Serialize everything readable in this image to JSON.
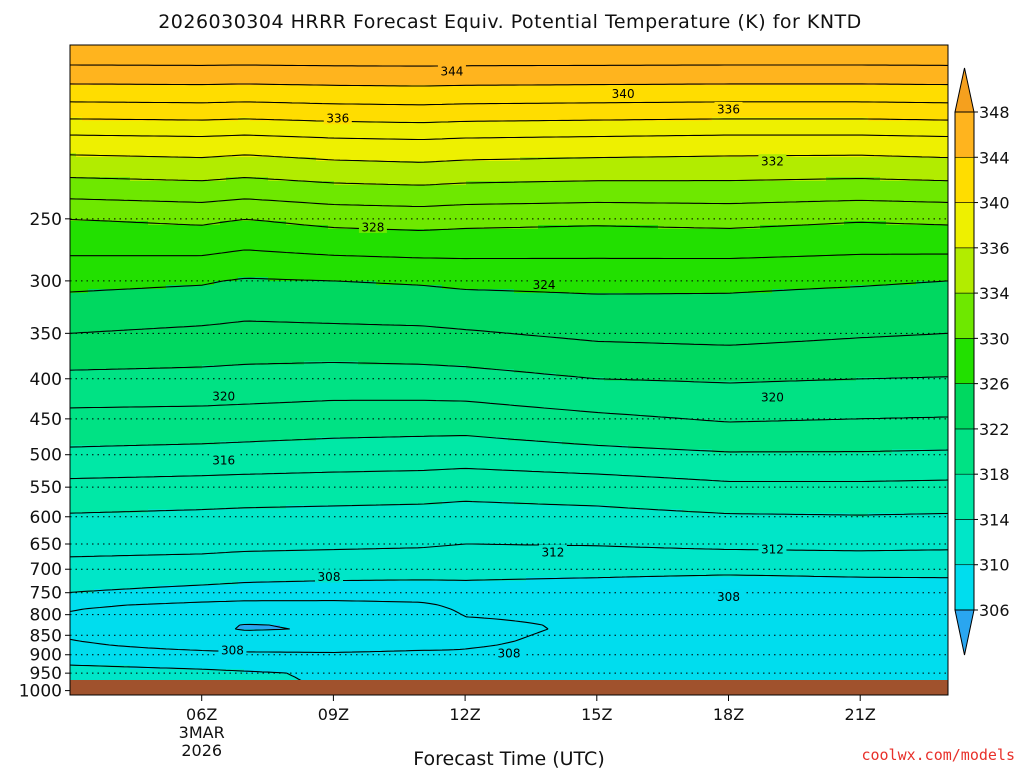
{
  "chart_data": {
    "type": "heatmap",
    "title": "2026030304 HRRR Forecast Equiv. Potential Temperature (K) for KNTD",
    "xlabel": "Forecast Time (UTC)",
    "ylabel": "",
    "credit": "coolwx.com/models",
    "x_start_hour": 3,
    "x_end_hour": 23,
    "x_ticks": [
      {
        "hour": 6,
        "label": "06Z",
        "sub1": "3MAR",
        "sub2": "2026"
      },
      {
        "hour": 9,
        "label": "09Z"
      },
      {
        "hour": 12,
        "label": "12Z"
      },
      {
        "hour": 15,
        "label": "15Z"
      },
      {
        "hour": 18,
        "label": "18Z"
      },
      {
        "hour": 21,
        "label": "21Z"
      }
    ],
    "y_axis": {
      "top_hpa": 150,
      "surface_hpa": 1013,
      "ticks": [
        {
          "p": 250,
          "label": "250"
        },
        {
          "p": 300,
          "label": "300"
        },
        {
          "p": 350,
          "label": "350"
        },
        {
          "p": 400,
          "label": "400"
        },
        {
          "p": 450,
          "label": "450"
        },
        {
          "p": 500,
          "label": "500"
        },
        {
          "p": 550,
          "label": "550"
        },
        {
          "p": 600,
          "label": "600"
        },
        {
          "p": 650,
          "label": "650"
        },
        {
          "p": 700,
          "label": "700"
        },
        {
          "p": 750,
          "label": "750"
        },
        {
          "p": 800,
          "label": "800"
        },
        {
          "p": 850,
          "label": "850"
        },
        {
          "p": 900,
          "label": "900"
        },
        {
          "p": 950,
          "label": "950"
        },
        {
          "p": 1000,
          "label": "1000"
        }
      ]
    },
    "colorbar": {
      "levels": [
        306,
        310,
        314,
        318,
        322,
        326,
        330,
        334,
        336,
        340,
        344,
        348
      ],
      "labels": [
        "306",
        "310",
        "314",
        "318",
        "322",
        "326",
        "330",
        "334",
        "336",
        "340",
        "344",
        "348"
      ],
      "colors": [
        "#18c8ff",
        "#00ddee",
        "#00e6c8",
        "#00e8a6",
        "#00e284",
        "#00d860",
        "#22e000",
        "#6ee800",
        "#b2ec00",
        "#eef000",
        "#ffdd00",
        "#ffb41e",
        "#ff9c1c"
      ],
      "under_color": "#2aa6f0",
      "over_color": "#f5a01e"
    },
    "surface_color": "#a0522d",
    "contour_interval": 2,
    "profiles": [
      {
        "hour": 3,
        "theta": [
          [
            150,
            348.0
          ],
          [
            200,
            337.0
          ],
          [
            250,
            330.0
          ],
          [
            300,
            326.5
          ],
          [
            350,
            324.0
          ],
          [
            400,
            321.5
          ],
          [
            450,
            319.4
          ],
          [
            500,
            317.6
          ],
          [
            550,
            315.4
          ],
          [
            600,
            313.8
          ],
          [
            650,
            312.6
          ],
          [
            700,
            311.4
          ],
          [
            750,
            310.0
          ],
          [
            780,
            308.2
          ],
          [
            830,
            307.4
          ],
          [
            870,
            308.2
          ],
          [
            900,
            309.0
          ],
          [
            950,
            310.8
          ],
          [
            1000,
            310.6
          ]
        ]
      },
      {
        "hour": 6,
        "theta": [
          [
            150,
            348.0
          ],
          [
            200,
            337.2
          ],
          [
            250,
            330.4
          ],
          [
            300,
            326.2
          ],
          [
            350,
            323.6
          ],
          [
            400,
            321.4
          ],
          [
            450,
            319.3
          ],
          [
            500,
            317.4
          ],
          [
            550,
            315.2
          ],
          [
            600,
            313.6
          ],
          [
            650,
            312.5
          ],
          [
            700,
            311.2
          ],
          [
            750,
            309.4
          ],
          [
            780,
            307.4
          ],
          [
            830,
            306.2
          ],
          [
            870,
            307.0
          ],
          [
            900,
            308.6
          ],
          [
            950,
            310.4
          ],
          [
            1000,
            310.3
          ]
        ]
      },
      {
        "hour": 7,
        "theta": [
          [
            150,
            348.0
          ],
          [
            200,
            337.0
          ],
          [
            250,
            330.0
          ],
          [
            300,
            325.8
          ],
          [
            350,
            323.4
          ],
          [
            400,
            321.3
          ],
          [
            450,
            319.2
          ],
          [
            500,
            317.3
          ],
          [
            550,
            315.1
          ],
          [
            600,
            313.5
          ],
          [
            650,
            312.4
          ],
          [
            700,
            311.0
          ],
          [
            750,
            309.2
          ],
          [
            780,
            307.2
          ],
          [
            830,
            305.8
          ],
          [
            870,
            306.8
          ],
          [
            900,
            308.4
          ],
          [
            950,
            310.2
          ],
          [
            1000,
            310.2
          ]
        ]
      },
      {
        "hour": 9,
        "theta": [
          [
            150,
            348.0
          ],
          [
            200,
            337.4
          ],
          [
            250,
            330.6
          ],
          [
            300,
            326.0
          ],
          [
            350,
            323.5
          ],
          [
            400,
            321.1
          ],
          [
            450,
            319.0
          ],
          [
            500,
            317.1
          ],
          [
            550,
            315.0
          ],
          [
            600,
            313.4
          ],
          [
            650,
            312.3
          ],
          [
            700,
            310.9
          ],
          [
            750,
            309.0
          ],
          [
            780,
            307.3
          ],
          [
            830,
            306.0
          ],
          [
            870,
            306.8
          ],
          [
            900,
            308.3
          ],
          [
            950,
            309.8
          ],
          [
            1000,
            310.0
          ]
        ]
      },
      {
        "hour": 11,
        "theta": [
          [
            150,
            348.0
          ],
          [
            200,
            337.6
          ],
          [
            250,
            330.8
          ],
          [
            300,
            326.2
          ],
          [
            350,
            323.6
          ],
          [
            400,
            321.2
          ],
          [
            450,
            318.9
          ],
          [
            500,
            317.0
          ],
          [
            550,
            314.9
          ],
          [
            600,
            313.3
          ],
          [
            650,
            312.2
          ],
          [
            700,
            310.8
          ],
          [
            750,
            309.0
          ],
          [
            780,
            307.6
          ],
          [
            830,
            306.2
          ],
          [
            870,
            307.2
          ],
          [
            900,
            308.5
          ],
          [
            950,
            309.2
          ],
          [
            1000,
            309.6
          ]
        ]
      },
      {
        "hour": 12,
        "theta": [
          [
            150,
            348.0
          ],
          [
            200,
            337.4
          ],
          [
            250,
            330.6
          ],
          [
            300,
            326.4
          ],
          [
            350,
            323.8
          ],
          [
            400,
            321.3
          ],
          [
            450,
            318.9
          ],
          [
            500,
            316.9
          ],
          [
            550,
            314.7
          ],
          [
            600,
            313.2
          ],
          [
            650,
            312.0
          ],
          [
            700,
            310.7
          ],
          [
            750,
            309.2
          ],
          [
            780,
            308.4
          ],
          [
            830,
            307.6
          ],
          [
            870,
            307.8
          ],
          [
            900,
            308.2
          ],
          [
            950,
            308.8
          ],
          [
            1000,
            309.2
          ]
        ]
      },
      {
        "hour": 15,
        "theta": [
          [
            150,
            348.0
          ],
          [
            200,
            337.2
          ],
          [
            250,
            330.4
          ],
          [
            300,
            326.5
          ],
          [
            350,
            324.4
          ],
          [
            400,
            322.0
          ],
          [
            450,
            319.6
          ],
          [
            500,
            317.4
          ],
          [
            550,
            315.0
          ],
          [
            600,
            313.4
          ],
          [
            650,
            312.1
          ],
          [
            700,
            310.6
          ],
          [
            750,
            308.9
          ],
          [
            780,
            308.4
          ],
          [
            830,
            308.2
          ],
          [
            870,
            308.4
          ],
          [
            900,
            308.6
          ],
          [
            950,
            308.4
          ],
          [
            1000,
            308.8
          ]
        ]
      },
      {
        "hour": 18,
        "theta": [
          [
            150,
            348.0
          ],
          [
            200,
            337.0
          ],
          [
            250,
            330.6
          ],
          [
            300,
            326.4
          ],
          [
            350,
            324.6
          ],
          [
            400,
            322.2
          ],
          [
            450,
            320.2
          ],
          [
            500,
            317.8
          ],
          [
            550,
            315.6
          ],
          [
            600,
            313.8
          ],
          [
            650,
            312.4
          ],
          [
            700,
            310.5
          ],
          [
            750,
            308.4
          ],
          [
            780,
            308.2
          ],
          [
            830,
            308.0
          ],
          [
            870,
            308.3
          ],
          [
            900,
            308.4
          ],
          [
            950,
            308.2
          ],
          [
            1000,
            308.6
          ]
        ]
      },
      {
        "hour": 21,
        "theta": [
          [
            150,
            348.0
          ],
          [
            200,
            337.0
          ],
          [
            250,
            330.2
          ],
          [
            300,
            326.2
          ],
          [
            350,
            324.2
          ],
          [
            400,
            322.0
          ],
          [
            450,
            320.0
          ],
          [
            500,
            317.8
          ],
          [
            550,
            315.6
          ],
          [
            600,
            313.9
          ],
          [
            650,
            312.5
          ],
          [
            700,
            310.6
          ],
          [
            750,
            308.8
          ],
          [
            780,
            308.6
          ],
          [
            830,
            308.4
          ],
          [
            870,
            308.6
          ],
          [
            900,
            309.0
          ],
          [
            950,
            309.4
          ],
          [
            1000,
            309.2
          ]
        ]
      },
      {
        "hour": 23,
        "theta": [
          [
            150,
            348.0
          ],
          [
            200,
            337.2
          ],
          [
            250,
            330.4
          ],
          [
            300,
            326.0
          ],
          [
            350,
            324.0
          ],
          [
            400,
            321.9
          ],
          [
            450,
            319.9
          ],
          [
            500,
            317.7
          ],
          [
            550,
            315.5
          ],
          [
            600,
            313.8
          ],
          [
            650,
            312.4
          ],
          [
            700,
            310.6
          ],
          [
            750,
            308.9
          ],
          [
            780,
            308.8
          ],
          [
            830,
            308.6
          ],
          [
            870,
            308.8
          ],
          [
            900,
            309.4
          ],
          [
            950,
            310.0
          ],
          [
            1000,
            309.6
          ]
        ]
      }
    ],
    "contour_labels": [
      {
        "hour": 11.7,
        "p": 162,
        "text": "344"
      },
      {
        "hour": 15.6,
        "p": 173,
        "text": "340"
      },
      {
        "hour": 9.1,
        "p": 186,
        "text": "336"
      },
      {
        "hour": 18.0,
        "p": 181,
        "text": "336"
      },
      {
        "hour": 19.0,
        "p": 211,
        "text": "332"
      },
      {
        "hour": 9.9,
        "p": 256,
        "text": "328"
      },
      {
        "hour": 13.8,
        "p": 303,
        "text": "324"
      },
      {
        "hour": 6.5,
        "p": 421,
        "text": "320"
      },
      {
        "hour": 19.0,
        "p": 422,
        "text": "320"
      },
      {
        "hour": 6.5,
        "p": 508,
        "text": "316"
      },
      {
        "hour": 14.0,
        "p": 665,
        "text": "312"
      },
      {
        "hour": 19.0,
        "p": 660,
        "text": "312"
      },
      {
        "hour": 8.9,
        "p": 715,
        "text": "308"
      },
      {
        "hour": 18.0,
        "p": 758,
        "text": "308"
      },
      {
        "hour": 6.7,
        "p": 887,
        "text": "308"
      },
      {
        "hour": 13.0,
        "p": 895,
        "text": "308"
      }
    ]
  }
}
